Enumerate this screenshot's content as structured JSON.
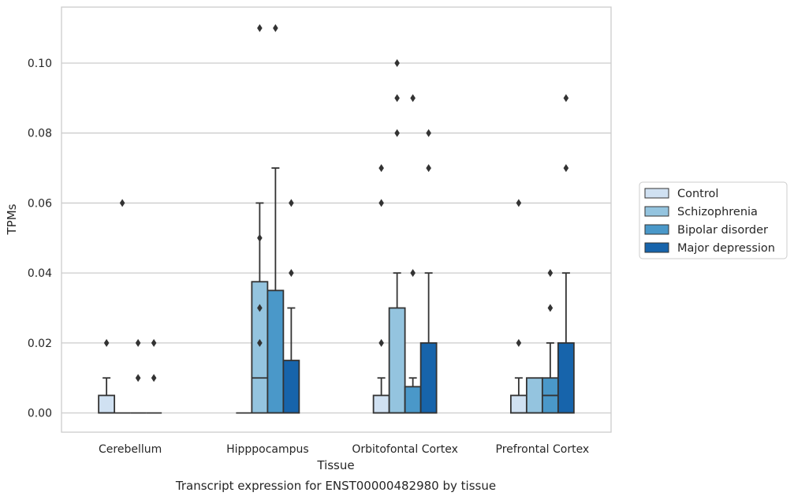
{
  "chart_data": {
    "type": "boxplot",
    "caption": "Transcript expression for ENST00000482980 by tissue",
    "xlabel": "Tissue",
    "ylabel": "TPMs",
    "ylim": [
      -0.0055,
      0.116
    ],
    "yticks": [
      0.0,
      0.02,
      0.04,
      0.06,
      0.08,
      0.1
    ],
    "ytick_labels": [
      "0.00",
      "0.02",
      "0.04",
      "0.06",
      "0.08",
      "0.10"
    ],
    "grid": "horizontal",
    "legend_position": "right",
    "categories": [
      "Cerebellum",
      "Hipppocampus",
      "Orbitofontal Cortex",
      "Prefrontal Cortex"
    ],
    "series": [
      {
        "name": "Control",
        "color": "#d0e1f2",
        "boxes": [
          {
            "q1": 0.0,
            "median": 0.0,
            "q3": 0.005,
            "whislo": 0.0,
            "whishi": 0.01,
            "fliers": [
              0.02
            ]
          },
          {
            "q1": 0.0,
            "median": 0.0,
            "q3": 0.0,
            "whislo": 0.0,
            "whishi": 0.0,
            "fliers": []
          },
          {
            "q1": 0.0,
            "median": 0.0,
            "q3": 0.005,
            "whislo": 0.0,
            "whishi": 0.01,
            "fliers": [
              0.02,
              0.06,
              0.07
            ]
          },
          {
            "q1": 0.0,
            "median": 0.0,
            "q3": 0.005,
            "whislo": 0.0,
            "whishi": 0.01,
            "fliers": [
              0.02,
              0.06
            ]
          }
        ]
      },
      {
        "name": "Schizophrenia",
        "color": "#94c4df",
        "boxes": [
          {
            "q1": 0.0,
            "median": 0.0,
            "q3": 0.0,
            "whislo": 0.0,
            "whishi": 0.0,
            "fliers": [
              0.06
            ]
          },
          {
            "q1": 0.0,
            "median": 0.01,
            "q3": 0.0375,
            "whislo": 0.0,
            "whishi": 0.06,
            "fliers": [
              0.02,
              0.03,
              0.05,
              0.11
            ]
          },
          {
            "q1": 0.0,
            "median": 0.0,
            "q3": 0.03,
            "whislo": 0.0,
            "whishi": 0.04,
            "fliers": [
              0.08,
              0.09,
              0.1
            ]
          },
          {
            "q1": 0.0,
            "median": 0.0,
            "q3": 0.01,
            "whislo": 0.0,
            "whishi": 0.01,
            "fliers": []
          }
        ]
      },
      {
        "name": "Bipolar disorder",
        "color": "#4a98c9",
        "boxes": [
          {
            "q1": 0.0,
            "median": 0.0,
            "q3": 0.0,
            "whislo": 0.0,
            "whishi": 0.0,
            "fliers": [
              0.01,
              0.02
            ]
          },
          {
            "q1": 0.0,
            "median": 0.0,
            "q3": 0.035,
            "whislo": 0.0,
            "whishi": 0.07,
            "fliers": [
              0.11
            ]
          },
          {
            "q1": 0.0,
            "median": 0.0,
            "q3": 0.0075,
            "whislo": 0.0,
            "whishi": 0.01,
            "fliers": [
              0.04,
              0.09
            ]
          },
          {
            "q1": 0.0,
            "median": 0.005,
            "q3": 0.01,
            "whislo": 0.0,
            "whishi": 0.02,
            "fliers": [
              0.03,
              0.04
            ]
          }
        ]
      },
      {
        "name": "Major depression",
        "color": "#1764ab",
        "boxes": [
          {
            "q1": 0.0,
            "median": 0.0,
            "q3": 0.0,
            "whislo": 0.0,
            "whishi": 0.0,
            "fliers": [
              0.01,
              0.02
            ]
          },
          {
            "q1": 0.0,
            "median": 0.0,
            "q3": 0.015,
            "whislo": 0.0,
            "whishi": 0.03,
            "fliers": [
              0.04,
              0.06
            ]
          },
          {
            "q1": 0.0,
            "median": 0.0,
            "q3": 0.02,
            "whislo": 0.0,
            "whishi": 0.04,
            "fliers": [
              0.07,
              0.08
            ]
          },
          {
            "q1": 0.0,
            "median": 0.0,
            "q3": 0.02,
            "whislo": 0.0,
            "whishi": 0.04,
            "fliers": [
              0.07,
              0.09
            ]
          }
        ]
      }
    ]
  }
}
